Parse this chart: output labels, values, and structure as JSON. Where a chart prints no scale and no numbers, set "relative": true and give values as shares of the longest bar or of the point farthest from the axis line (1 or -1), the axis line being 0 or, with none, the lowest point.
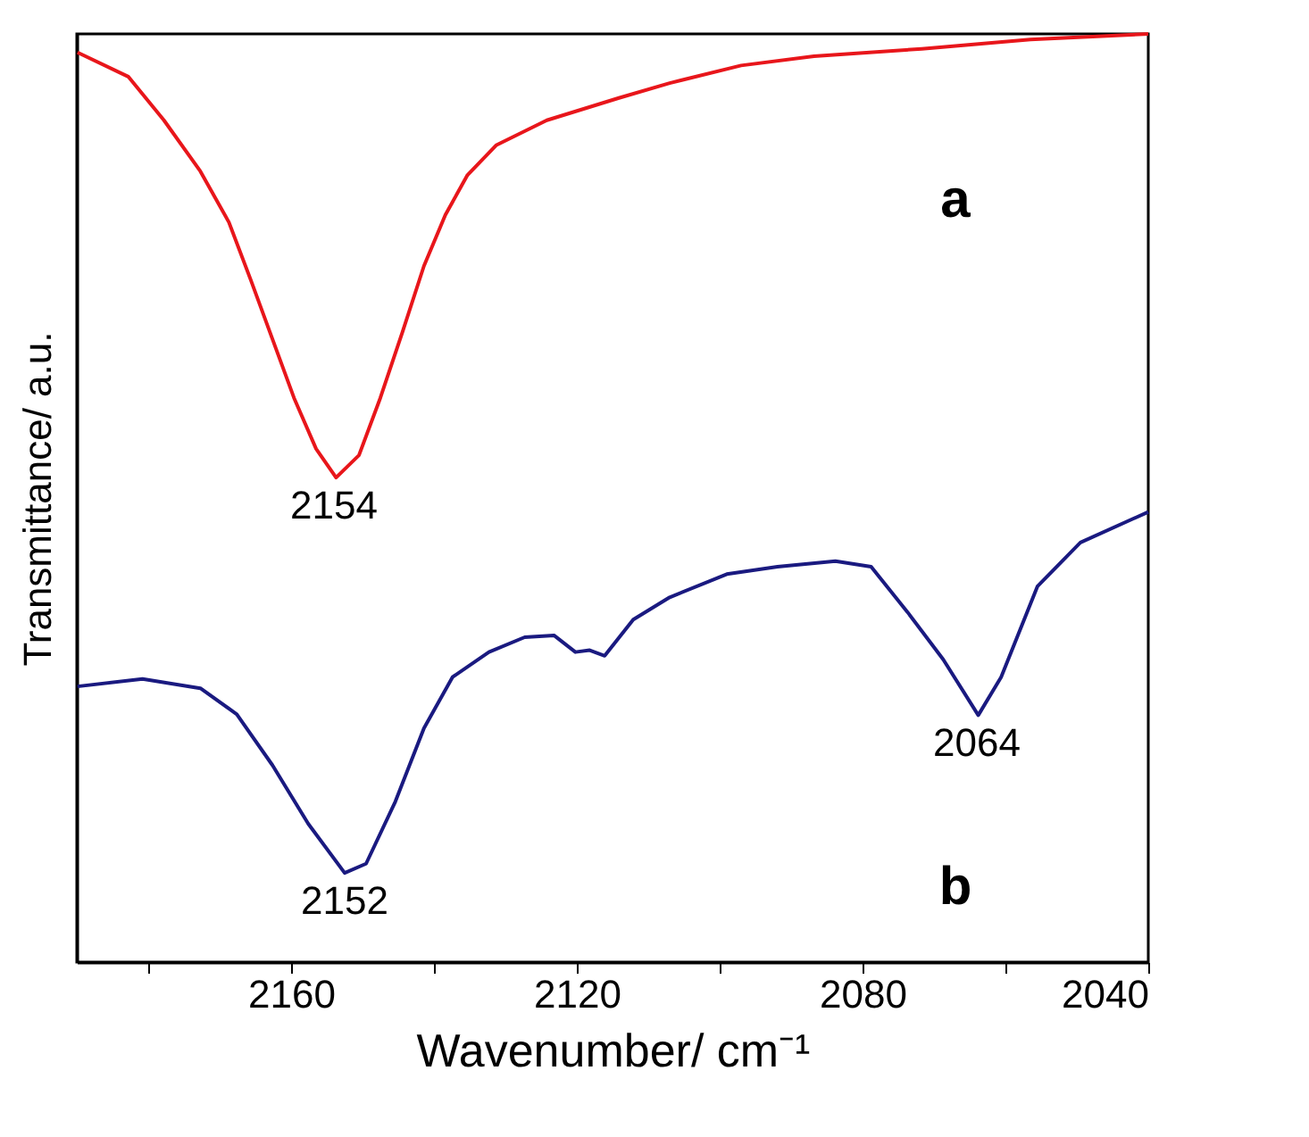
{
  "chart_data": {
    "type": "line",
    "relative": true,
    "xlabel": "Wavenumber/ cm⁻¹",
    "ylabel": "Transmittance/ a.u.",
    "xlim": [
      2190,
      2040
    ],
    "xticks": [
      {
        "value": 2180,
        "label": null
      },
      2160,
      {
        "value": 2140,
        "label": null
      },
      2120,
      {
        "value": 2100,
        "label": null
      },
      2080,
      {
        "value": 2060,
        "label": null
      },
      2040
    ],
    "grid": false,
    "legend": false,
    "line_style": "solid",
    "marker": "none",
    "series": [
      {
        "name": "a",
        "color": "#e8161b",
        "x": [
          2189.9,
          2182.8,
          2177.8,
          2172.7,
          2168.7,
          2165.6,
          2162.6,
          2159.6,
          2156.5,
          2153.7,
          2150.5,
          2147.5,
          2144.4,
          2141.4,
          2138.4,
          2135.3,
          2131.3,
          2124.2,
          2114.1,
          2107.0,
          2097.0,
          2086.8,
          2071.7,
          2056.5,
          2040.0
        ],
        "values": [
          0.98,
          0.954,
          0.907,
          0.852,
          0.797,
          0.734,
          0.671,
          0.608,
          0.553,
          0.522,
          0.546,
          0.608,
          0.679,
          0.75,
          0.805,
          0.848,
          0.88,
          0.907,
          0.931,
          0.947,
          0.966,
          0.976,
          0.984,
          0.994,
          1.0
        ]
      },
      {
        "name": "b",
        "color": "#1a1a80",
        "x": [
          2189.9,
          2180.8,
          2172.7,
          2167.6,
          2162.6,
          2157.6,
          2152.5,
          2149.5,
          2145.4,
          2141.4,
          2137.4,
          2132.3,
          2127.3,
          2123.2,
          2120.2,
          2118.2,
          2116.1,
          2112.1,
          2107.0,
          2099.0,
          2091.9,
          2083.8,
          2078.8,
          2073.7,
          2068.7,
          2063.8,
          2060.6,
          2055.5,
          2049.5,
          2040.0
        ],
        "values": [
          0.297,
          0.305,
          0.295,
          0.267,
          0.212,
          0.149,
          0.096,
          0.106,
          0.173,
          0.252,
          0.307,
          0.334,
          0.35,
          0.352,
          0.334,
          0.336,
          0.33,
          0.369,
          0.393,
          0.418,
          0.426,
          0.432,
          0.426,
          0.377,
          0.326,
          0.266,
          0.307,
          0.405,
          0.452,
          0.485
        ]
      }
    ],
    "annotations": [
      {
        "text": "2154",
        "x": 2154,
        "y": 0.522
      },
      {
        "text": "2152",
        "x": 2152.5,
        "y": 0.096
      },
      {
        "text": "2064",
        "x": 2064,
        "y": 0.266
      }
    ]
  }
}
